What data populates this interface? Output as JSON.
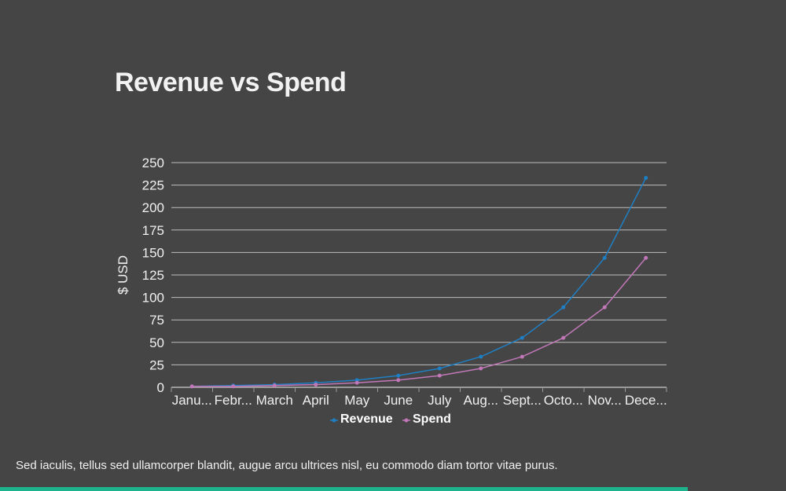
{
  "title": "Revenue vs Spend",
  "caption": "Sed iaculis, tellus sed ullamcorper blandit, augue arcu ultrices nisl, eu commodo diam tortor vitae purus.",
  "progress_fraction": 0.875,
  "colors": {
    "background": "#454545",
    "accent_bar": "#1db38d"
  },
  "chart_data": {
    "type": "line",
    "title": "",
    "xlabel": "",
    "ylabel": "$ USD",
    "ylim": [
      0,
      250
    ],
    "yticks": [
      0,
      25,
      50,
      75,
      100,
      125,
      150,
      175,
      200,
      225,
      250
    ],
    "grid": true,
    "legend_position": "bottom",
    "categories": [
      "Janu...",
      "Febr...",
      "March",
      "April",
      "May",
      "June",
      "July",
      "Aug...",
      "Sept...",
      "Octo...",
      "Nov...",
      "Dece..."
    ],
    "series": [
      {
        "name": "Revenue",
        "color": "#1f7fc4",
        "values": [
          1,
          2,
          3,
          5,
          8,
          13,
          21,
          34,
          55,
          89,
          144,
          233
        ]
      },
      {
        "name": "Spend",
        "color": "#c277b8",
        "values": [
          1,
          1,
          2,
          3,
          5,
          8,
          13,
          21,
          34,
          55,
          89,
          144
        ]
      }
    ]
  }
}
